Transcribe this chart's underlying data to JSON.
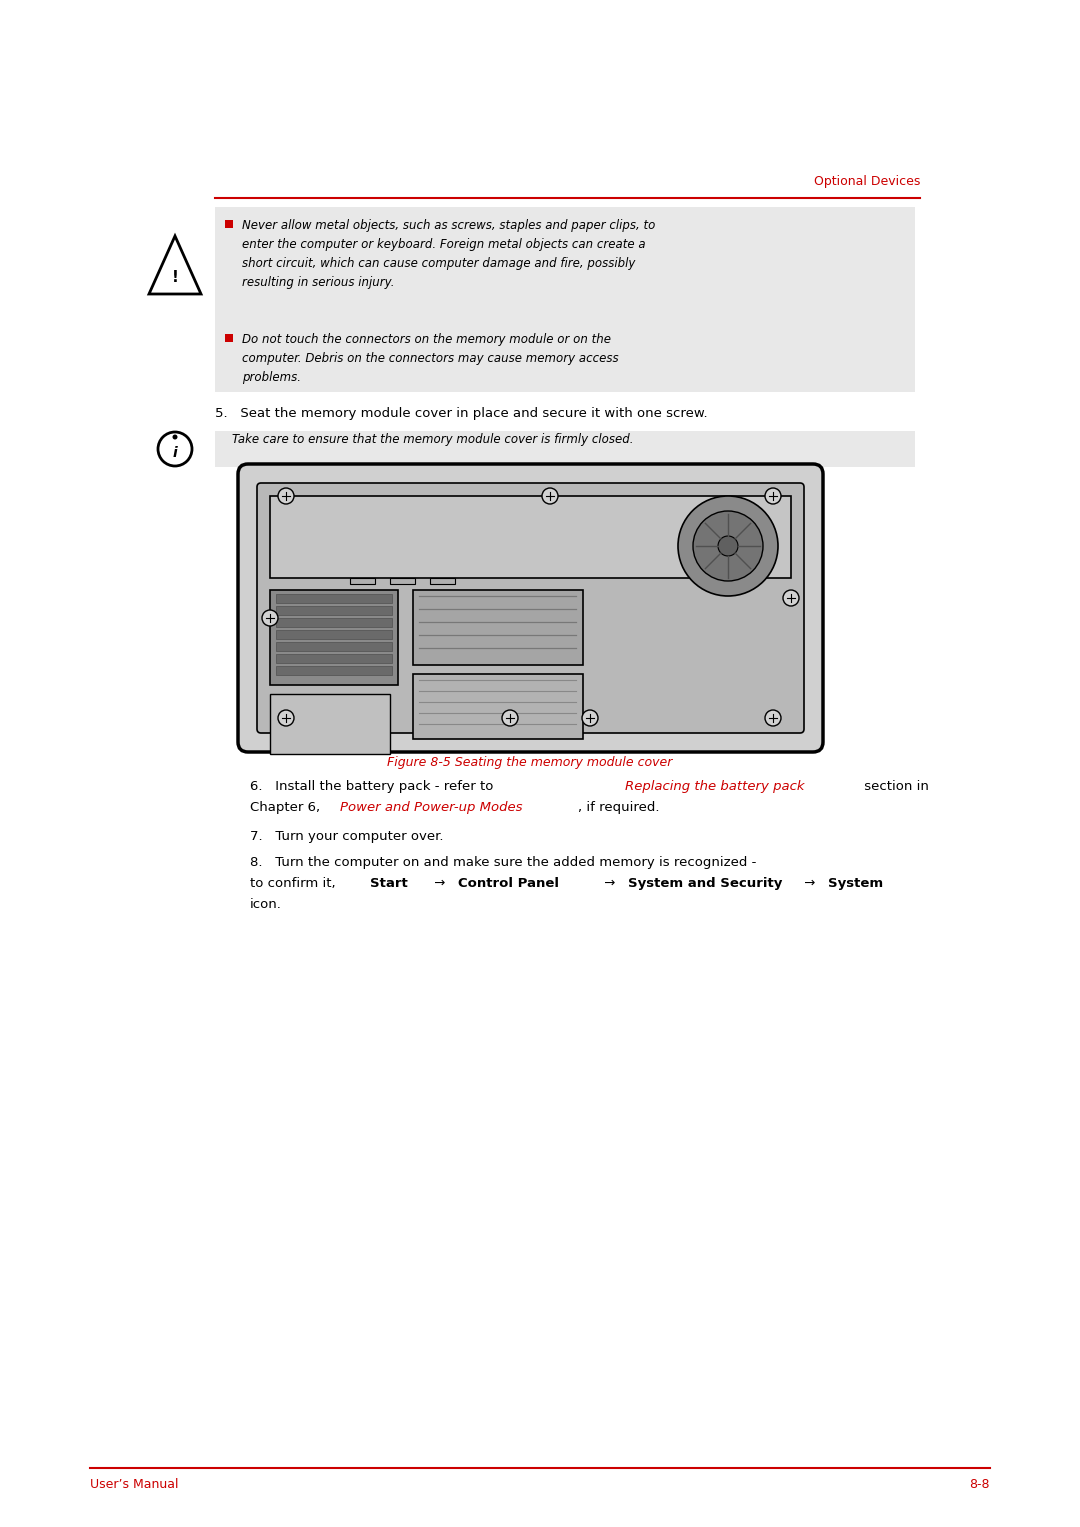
{
  "bg_color": "#ffffff",
  "red_color": "#cc0000",
  "gray_bg": "#e8e8e8",
  "black": "#000000",
  "header_text": "Optional Devices",
  "footer_left": "User’s Manual",
  "footer_right": "8-8",
  "warn1_lines": [
    "Never allow metal objects, such as screws, staples and paper clips, to",
    "enter the computer or keyboard. Foreign metal objects can create a",
    "short circuit, which can cause computer damage and fire, possibly",
    "resulting in serious injury."
  ],
  "warn2_lines": [
    "Do not touch the connectors on the memory module or on the",
    "computer. Debris on the connectors may cause memory access",
    "problems."
  ],
  "step5": "5.   Seat the memory module cover in place and secure it with one screw.",
  "note": "Take care to ensure that the memory module cover is firmly closed.",
  "figure_caption": "Figure 8-5 Seating the memory module cover",
  "step7": "7.   Turn your computer over.",
  "step8_line1": "8.   Turn the computer on and make sure the added memory is recognized -",
  "step8_line2_pre": "to confirm it, ",
  "step8_icon": "icon."
}
